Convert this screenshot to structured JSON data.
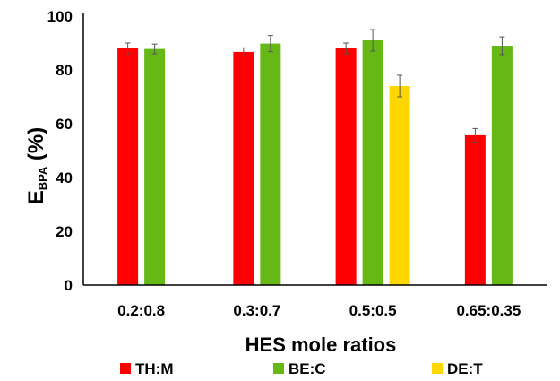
{
  "chart_data": {
    "type": "bar",
    "title": "",
    "xlabel": "HES mole ratios",
    "ylabel_main": "E",
    "ylabel_sub": "BPA",
    "ylabel_suffix": " (%)",
    "ylim": [
      0,
      100
    ],
    "yticks": [
      0,
      20,
      40,
      60,
      80,
      100
    ],
    "grid": false,
    "legend_position": "bottom",
    "categories": [
      "0.2:0.8",
      "0.3:0.7",
      "0.5:0.5",
      "0.65:0.35"
    ],
    "series": [
      {
        "name": "TH:M",
        "color": "#ff0000",
        "values": [
          88,
          86.7,
          88,
          55.7
        ],
        "errors": [
          2,
          1.5,
          2,
          2.5
        ]
      },
      {
        "name": "BE:C",
        "color": "#66b814",
        "values": [
          87.8,
          89.8,
          91,
          89
        ],
        "errors": [
          1.8,
          3,
          4,
          3.3
        ]
      },
      {
        "name": "DE:T",
        "color": "#ffd700",
        "values": [
          null,
          null,
          74,
          null
        ],
        "errors": [
          null,
          null,
          4,
          null
        ]
      }
    ]
  }
}
